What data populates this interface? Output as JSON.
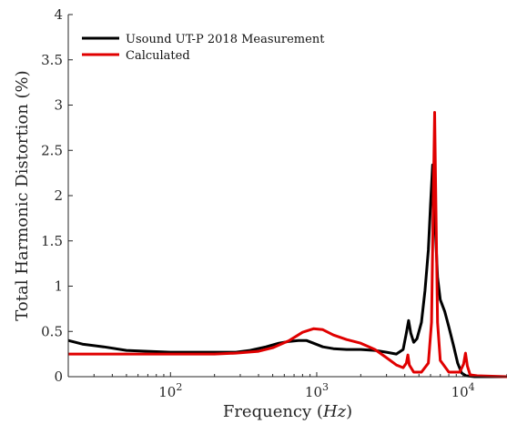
{
  "chart_data": {
    "type": "line",
    "title": "",
    "xlabel": "Frequency",
    "xlabel_unit": "Hz",
    "ylabel": "Total Harmonic Distortion (%)",
    "xscale": "log",
    "xlim": [
      20,
      20000
    ],
    "ylim": [
      0,
      4
    ],
    "yticks": [
      "0",
      "0.5",
      "1",
      "1.5",
      "2",
      "2.5",
      "3",
      "3.5",
      "4"
    ],
    "xticks": [
      {
        "base": "10",
        "exp": "2",
        "value": 100
      },
      {
        "base": "10",
        "exp": "3",
        "value": 1000
      },
      {
        "base": "10",
        "exp": "4",
        "value": 10000
      }
    ],
    "grid": false,
    "legend_position": "top-left",
    "series": [
      {
        "name": "Usound UT-P 2018 Measurement",
        "color": "#000000",
        "points": [
          [
            20,
            0.4
          ],
          [
            25,
            0.36
          ],
          [
            35,
            0.33
          ],
          [
            50,
            0.29
          ],
          [
            70,
            0.28
          ],
          [
            100,
            0.27
          ],
          [
            150,
            0.27
          ],
          [
            200,
            0.27
          ],
          [
            280,
            0.27
          ],
          [
            350,
            0.29
          ],
          [
            450,
            0.33
          ],
          [
            550,
            0.37
          ],
          [
            650,
            0.39
          ],
          [
            750,
            0.4
          ],
          [
            850,
            0.4
          ],
          [
            950,
            0.37
          ],
          [
            1100,
            0.33
          ],
          [
            1300,
            0.31
          ],
          [
            1600,
            0.3
          ],
          [
            2000,
            0.3
          ],
          [
            2500,
            0.29
          ],
          [
            3000,
            0.27
          ],
          [
            3500,
            0.25
          ],
          [
            3900,
            0.3
          ],
          [
            4100,
            0.48
          ],
          [
            4250,
            0.62
          ],
          [
            4400,
            0.48
          ],
          [
            4600,
            0.38
          ],
          [
            4850,
            0.42
          ],
          [
            5200,
            0.6
          ],
          [
            5500,
            0.95
          ],
          [
            5800,
            1.4
          ],
          [
            6000,
            1.9
          ],
          [
            6200,
            2.34
          ],
          [
            6400,
            1.8
          ],
          [
            6700,
            1.1
          ],
          [
            7000,
            0.85
          ],
          [
            7500,
            0.72
          ],
          [
            8000,
            0.55
          ],
          [
            8600,
            0.35
          ],
          [
            9200,
            0.15
          ],
          [
            9800,
            0.04
          ],
          [
            10500,
            0.01
          ],
          [
            12000,
            0.0
          ],
          [
            20000,
            0.0
          ]
        ]
      },
      {
        "name": "Calculated",
        "color": "#e00000",
        "points": [
          [
            20,
            0.25
          ],
          [
            50,
            0.25
          ],
          [
            100,
            0.25
          ],
          [
            200,
            0.25
          ],
          [
            280,
            0.26
          ],
          [
            400,
            0.28
          ],
          [
            500,
            0.32
          ],
          [
            650,
            0.4
          ],
          [
            800,
            0.49
          ],
          [
            950,
            0.53
          ],
          [
            1100,
            0.52
          ],
          [
            1300,
            0.46
          ],
          [
            1600,
            0.41
          ],
          [
            2000,
            0.37
          ],
          [
            2500,
            0.3
          ],
          [
            3000,
            0.21
          ],
          [
            3500,
            0.13
          ],
          [
            3900,
            0.1
          ],
          [
            4100,
            0.15
          ],
          [
            4200,
            0.24
          ],
          [
            4300,
            0.13
          ],
          [
            4600,
            0.05
          ],
          [
            5200,
            0.05
          ],
          [
            5800,
            0.15
          ],
          [
            6100,
            0.6
          ],
          [
            6300,
            2.2
          ],
          [
            6400,
            2.92
          ],
          [
            6500,
            2.1
          ],
          [
            6700,
            0.6
          ],
          [
            7000,
            0.18
          ],
          [
            8000,
            0.05
          ],
          [
            9500,
            0.05
          ],
          [
            10100,
            0.14
          ],
          [
            10400,
            0.26
          ],
          [
            10700,
            0.12
          ],
          [
            11200,
            0.02
          ],
          [
            12500,
            0.01
          ],
          [
            20000,
            0.0
          ]
        ]
      }
    ]
  }
}
